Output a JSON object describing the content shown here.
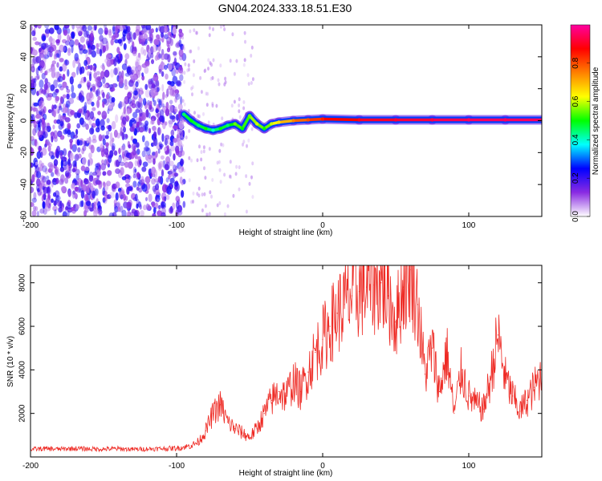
{
  "title": "GN04.2024.333.18.51.E30",
  "chart_data": [
    {
      "type": "heatmap",
      "xlabel": "Height of straight line (km)",
      "ylabel": "Frequency (Hz)",
      "xlim": [
        -200,
        150
      ],
      "ylim": [
        -60,
        60
      ],
      "x_ticks": [
        "-200",
        "-100",
        "0",
        "100"
      ],
      "y_ticks": [
        "-60",
        "-40",
        "-20",
        "0",
        "20",
        "40",
        "60"
      ],
      "colorbar": {
        "label": "Normalized spectral amplitude",
        "ticks": [
          "0.0",
          "0.2",
          "0.4",
          "0.6",
          "0.8"
        ],
        "range": [
          0,
          1
        ],
        "colormap": [
          "#ffffff",
          "#8a2be2",
          "#0000ff",
          "#00ffff",
          "#00ff00",
          "#ffff00",
          "#ff8000",
          "#ff0000",
          "#ff00a0"
        ]
      },
      "noise_region": {
        "x_start": -200,
        "x_end": -97,
        "freq_range": [
          -60,
          60
        ],
        "amplitude": [
          0.05,
          0.25
        ]
      },
      "signal_track": [
        {
          "x": -95,
          "freq": 4,
          "amp": 0.45
        },
        {
          "x": -90,
          "freq": 0,
          "amp": 0.5
        },
        {
          "x": -85,
          "freq": -3,
          "amp": 0.45
        },
        {
          "x": -80,
          "freq": -5,
          "amp": 0.5
        },
        {
          "x": -75,
          "freq": -6,
          "amp": 0.4
        },
        {
          "x": -70,
          "freq": -5,
          "amp": 0.5
        },
        {
          "x": -65,
          "freq": -3,
          "amp": 0.45
        },
        {
          "x": -60,
          "freq": -2,
          "amp": 0.55
        },
        {
          "x": -55,
          "freq": -5,
          "amp": 0.5
        },
        {
          "x": -50,
          "freq": 3,
          "amp": 0.55
        },
        {
          "x": -45,
          "freq": -2,
          "amp": 0.6
        },
        {
          "x": -40,
          "freq": -5,
          "amp": 0.5
        },
        {
          "x": -35,
          "freq": -2,
          "amp": 0.6
        },
        {
          "x": -30,
          "freq": -1,
          "amp": 0.65
        },
        {
          "x": -20,
          "freq": 0,
          "amp": 0.75
        },
        {
          "x": -10,
          "freq": 0.5,
          "amp": 0.8
        },
        {
          "x": 0,
          "freq": 1,
          "amp": 0.85
        },
        {
          "x": 25,
          "freq": 0.5,
          "amp": 0.9
        },
        {
          "x": 50,
          "freq": 0.5,
          "amp": 0.92
        },
        {
          "x": 75,
          "freq": 0.5,
          "amp": 0.93
        },
        {
          "x": 100,
          "freq": 0.5,
          "amp": 0.95
        },
        {
          "x": 125,
          "freq": 0.5,
          "amp": 0.95
        },
        {
          "x": 150,
          "freq": 0.5,
          "amp": 0.95
        }
      ]
    },
    {
      "type": "line",
      "xlabel": "Height of straight line (km)",
      "ylabel": "SNR (10 * v/v)",
      "xlim": [
        -200,
        150
      ],
      "ylim": [
        0,
        8800
      ],
      "x_ticks": [
        "-200",
        "-100",
        "0",
        "100"
      ],
      "y_ticks": [
        "2000",
        "4000",
        "6000",
        "8000"
      ],
      "color": "#ee2a24",
      "series": [
        {
          "x": [
            -200,
            -190,
            -180,
            -170,
            -160,
            -150,
            -140,
            -130,
            -120,
            -110,
            -100,
            -95,
            -90,
            -85,
            -80,
            -75,
            -70,
            -65,
            -60,
            -55,
            -50,
            -45,
            -40,
            -35,
            -30,
            -25,
            -20,
            -15,
            -10,
            -5,
            0,
            5,
            10,
            15,
            20,
            25,
            30,
            35,
            40,
            45,
            50,
            55,
            60,
            65,
            70,
            75,
            80,
            85,
            90,
            95,
            100,
            105,
            110,
            115,
            120,
            125,
            130,
            135,
            140,
            145,
            150
          ],
          "values": [
            350,
            380,
            360,
            390,
            370,
            360,
            380,
            350,
            370,
            380,
            400,
            450,
            520,
            700,
            1200,
            2000,
            2400,
            1600,
            1300,
            1100,
            900,
            1300,
            2000,
            2600,
            3000,
            2800,
            3500,
            3000,
            3900,
            4800,
            5400,
            6000,
            6600,
            7000,
            7400,
            7600,
            7800,
            7900,
            8000,
            7400,
            6200,
            7800,
            8600,
            7000,
            3800,
            5000,
            3000,
            4800,
            2000,
            4000,
            2800,
            2400,
            2200,
            3600,
            5600,
            3600,
            2800,
            2100,
            2600,
            3200,
            3800
          ]
        }
      ]
    }
  ]
}
